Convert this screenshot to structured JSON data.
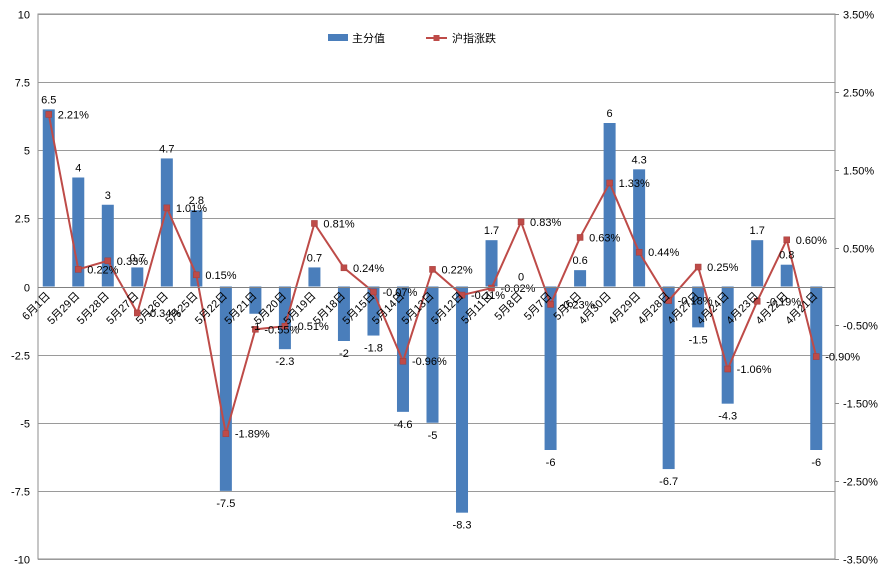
{
  "chart_data": {
    "type": "bar+line",
    "legend": {
      "position": "top-center",
      "bar_series_label": "主分值",
      "line_series_label": "沪指涨跌"
    },
    "categories": [
      "6月1日",
      "5月29日",
      "5月28日",
      "5月27日",
      "5月26日",
      "5月25日",
      "5月22日",
      "5月21日",
      "5月20日",
      "5月19日",
      "5月18日",
      "5月15日",
      "5月14日",
      "5月13日",
      "5月12日",
      "5月11日",
      "5月8日",
      "5月7日",
      "5月6日",
      "4月30日",
      "4月29日",
      "4月28日",
      "4月27日",
      "4月24日",
      "4月23日",
      "4月22日",
      "4月21日"
    ],
    "bar_values": [
      6.5,
      4,
      3,
      0.7,
      4.7,
      2.8,
      -7.5,
      -1,
      -2.3,
      0.7,
      -2,
      -1.8,
      -4.6,
      -5,
      -8.3,
      1.7,
      0,
      -6,
      0.6,
      6,
      4.3,
      -6.7,
      -1.5,
      -4.3,
      1.7,
      0.8,
      -6
    ],
    "bar_labels": [
      "6.5",
      "4",
      "3",
      "0.7",
      "4.7",
      "2.8",
      "-7.5",
      "-1",
      "-2.3",
      "0.7",
      "-2",
      "-1.8",
      "-4.6",
      "-5",
      "-8.3",
      "1.7",
      "0",
      "-6",
      "0.6",
      "6",
      "4.3",
      "-6.7",
      "-1.5",
      "-4.3",
      "1.7",
      "0.8",
      "-6"
    ],
    "line_values": [
      2.21,
      0.22,
      0.33,
      -0.34,
      1.01,
      0.15,
      -1.89,
      -0.55,
      -0.51,
      0.81,
      0.24,
      -0.07,
      -0.96,
      0.22,
      -0.11,
      -0.02,
      0.83,
      -0.23,
      0.63,
      1.33,
      0.44,
      -0.18,
      0.25,
      -1.06,
      -0.19,
      0.6,
      -0.9
    ],
    "line_labels": [
      "2.21%",
      "0.22%",
      "0.33%",
      "-0.34%",
      "1.01%",
      "0.15%",
      "-1.89%",
      "-0.55%",
      "-0.51%",
      "0.81%",
      "0.24%",
      "-0.07%",
      "-0.96%",
      "0.22%",
      "-0.11%",
      "-0.02%",
      "0.83%",
      "-0.23%",
      "0.63%",
      "1.33%",
      "0.44%",
      "-0.18%",
      "0.25%",
      "-1.06%",
      "-0.19%",
      "0.60%",
      "-0.90%"
    ],
    "y_left": {
      "min": -10,
      "max": 10,
      "ticks": [
        10,
        7.5,
        5,
        2.5,
        0,
        -2.5,
        -5,
        -7.5,
        -10
      ],
      "tick_labels": [
        "10",
        "7.5",
        "5",
        "2.5",
        "0",
        "-2.5",
        "-5",
        "-7.5",
        "-10"
      ]
    },
    "y_right": {
      "min": -3.5,
      "max": 3.5,
      "ticks": [
        3.5,
        2.5,
        1.5,
        0.5,
        -0.5,
        -1.5,
        -2.5,
        -3.5
      ],
      "tick_labels": [
        "3.50%",
        "2.50%",
        "1.50%",
        "0.50%",
        "-0.50%",
        "-1.50%",
        "-2.50%",
        "-3.50%"
      ]
    },
    "grid": true,
    "colors": {
      "bar": "#4a7ebb",
      "line": "#be4b48",
      "grid": "#9a9a9a"
    }
  }
}
